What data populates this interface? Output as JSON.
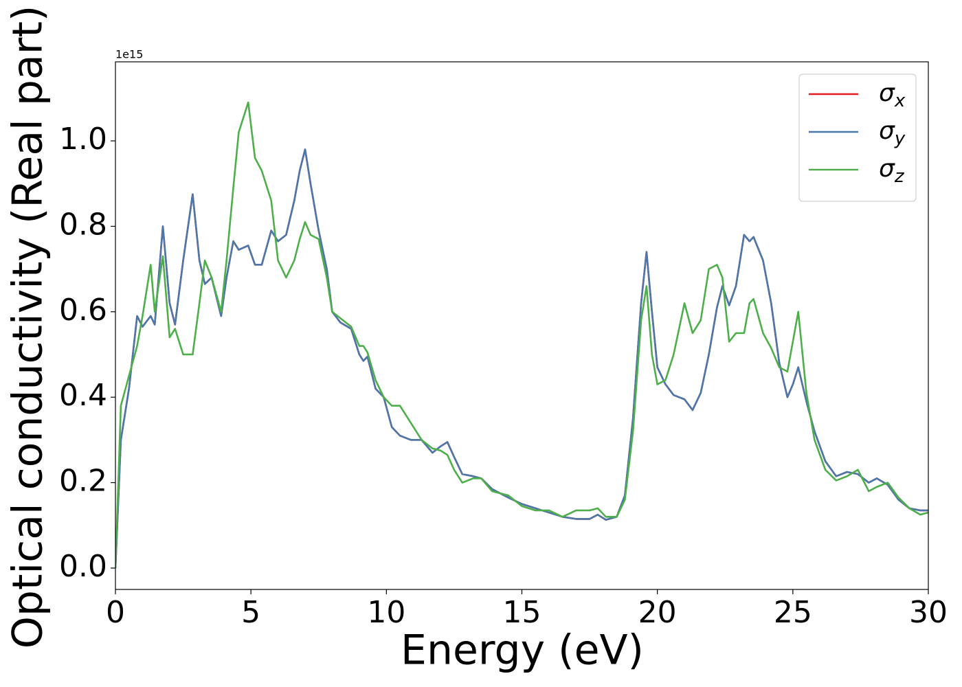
{
  "chart_data": {
    "type": "line",
    "x_label": "Energy (eV)",
    "y_label": "Optical conductivity (Real part)",
    "y_offset_label": "1e15",
    "xlim": [
      0,
      30
    ],
    "ylim": [
      -0.05,
      1.185
    ],
    "xticks": [
      0,
      5,
      10,
      15,
      20,
      25,
      30
    ],
    "yticks": [
      {
        "value": 0,
        "label": "0.0"
      },
      0.2,
      0.4,
      0.6,
      0.8,
      {
        "value": 1,
        "label": "1.0"
      }
    ],
    "legend": "upper right",
    "x": [
      0,
      0.2,
      0.5,
      0.8,
      1.0,
      1.3,
      1.45,
      1.75,
      2.0,
      2.2,
      2.5,
      2.85,
      3.1,
      3.3,
      3.55,
      3.9,
      4.1,
      4.35,
      4.55,
      4.9,
      5.15,
      5.4,
      5.75,
      6.0,
      6.3,
      6.6,
      6.8,
      7.0,
      7.2,
      7.5,
      7.8,
      8.0,
      8.3,
      8.7,
      9.0,
      9.15,
      9.3,
      9.6,
      9.9,
      10.2,
      10.5,
      10.9,
      11.3,
      11.7,
      12.0,
      12.25,
      12.5,
      12.8,
      13.2,
      13.5,
      13.9,
      14.5,
      15.0,
      15.5,
      16.0,
      16.5,
      17.0,
      17.5,
      17.8,
      18.1,
      18.5,
      18.8,
      19.1,
      19.4,
      19.6,
      19.8,
      20.0,
      20.3,
      20.6,
      21.0,
      21.3,
      21.6,
      21.9,
      22.2,
      22.4,
      22.65,
      22.9,
      23.2,
      23.4,
      23.55,
      23.9,
      24.2,
      24.5,
      24.8,
      25.0,
      25.2,
      25.5,
      25.8,
      26.2,
      26.6,
      27.0,
      27.4,
      27.8,
      28.1,
      28.5,
      28.9,
      29.3,
      29.7,
      30
    ],
    "series": [
      {
        "name": "σx",
        "color": "#e41a1c",
        "values": [
          0,
          0.3,
          0.42,
          0.59,
          0.565,
          0.59,
          0.57,
          0.8,
          0.62,
          0.57,
          0.72,
          0.875,
          0.72,
          0.665,
          0.68,
          0.59,
          0.68,
          0.765,
          0.745,
          0.755,
          0.71,
          0.71,
          0.79,
          0.765,
          0.78,
          0.86,
          0.93,
          0.98,
          0.9,
          0.79,
          0.7,
          0.6,
          0.575,
          0.56,
          0.5,
          0.485,
          0.495,
          0.42,
          0.4,
          0.33,
          0.31,
          0.3,
          0.3,
          0.27,
          0.285,
          0.295,
          0.26,
          0.22,
          0.215,
          0.21,
          0.185,
          0.165,
          0.15,
          0.14,
          0.13,
          0.12,
          0.115,
          0.115,
          0.125,
          0.113,
          0.12,
          0.17,
          0.35,
          0.62,
          0.74,
          0.6,
          0.47,
          0.43,
          0.405,
          0.395,
          0.37,
          0.41,
          0.5,
          0.61,
          0.66,
          0.615,
          0.66,
          0.78,
          0.765,
          0.775,
          0.72,
          0.62,
          0.48,
          0.4,
          0.43,
          0.47,
          0.39,
          0.32,
          0.25,
          0.215,
          0.225,
          0.22,
          0.2,
          0.21,
          0.195,
          0.16,
          0.14,
          0.135,
          0.135
        ]
      },
      {
        "name": "σy",
        "color": "#4a78ad",
        "values": [
          0,
          0.3,
          0.42,
          0.59,
          0.565,
          0.59,
          0.57,
          0.8,
          0.62,
          0.57,
          0.72,
          0.875,
          0.72,
          0.665,
          0.68,
          0.59,
          0.68,
          0.765,
          0.745,
          0.755,
          0.71,
          0.71,
          0.79,
          0.765,
          0.78,
          0.86,
          0.93,
          0.98,
          0.9,
          0.79,
          0.7,
          0.6,
          0.575,
          0.56,
          0.5,
          0.485,
          0.495,
          0.42,
          0.4,
          0.33,
          0.31,
          0.3,
          0.3,
          0.27,
          0.285,
          0.295,
          0.26,
          0.22,
          0.215,
          0.21,
          0.185,
          0.165,
          0.15,
          0.14,
          0.13,
          0.12,
          0.115,
          0.115,
          0.125,
          0.113,
          0.12,
          0.17,
          0.35,
          0.62,
          0.74,
          0.6,
          0.47,
          0.43,
          0.405,
          0.395,
          0.37,
          0.41,
          0.5,
          0.61,
          0.66,
          0.615,
          0.66,
          0.78,
          0.765,
          0.775,
          0.72,
          0.62,
          0.48,
          0.4,
          0.43,
          0.47,
          0.39,
          0.32,
          0.25,
          0.215,
          0.225,
          0.22,
          0.2,
          0.21,
          0.195,
          0.16,
          0.14,
          0.135,
          0.135
        ]
      },
      {
        "name": "σz",
        "color": "#4daf4a",
        "values": [
          0,
          0.38,
          0.45,
          0.52,
          0.59,
          0.71,
          0.6,
          0.73,
          0.54,
          0.56,
          0.5,
          0.5,
          0.62,
          0.72,
          0.68,
          0.6,
          0.72,
          0.89,
          1.02,
          1.09,
          0.96,
          0.93,
          0.86,
          0.72,
          0.68,
          0.72,
          0.77,
          0.81,
          0.78,
          0.77,
          0.68,
          0.6,
          0.585,
          0.565,
          0.52,
          0.52,
          0.505,
          0.44,
          0.4,
          0.38,
          0.38,
          0.34,
          0.3,
          0.28,
          0.275,
          0.265,
          0.23,
          0.2,
          0.21,
          0.21,
          0.18,
          0.17,
          0.145,
          0.135,
          0.135,
          0.12,
          0.135,
          0.135,
          0.14,
          0.12,
          0.12,
          0.16,
          0.32,
          0.58,
          0.66,
          0.5,
          0.43,
          0.44,
          0.5,
          0.62,
          0.55,
          0.58,
          0.7,
          0.71,
          0.68,
          0.53,
          0.55,
          0.55,
          0.62,
          0.63,
          0.55,
          0.515,
          0.47,
          0.46,
          0.53,
          0.6,
          0.41,
          0.3,
          0.23,
          0.205,
          0.215,
          0.23,
          0.18,
          0.19,
          0.2,
          0.165,
          0.14,
          0.125,
          0.13
        ]
      }
    ]
  }
}
